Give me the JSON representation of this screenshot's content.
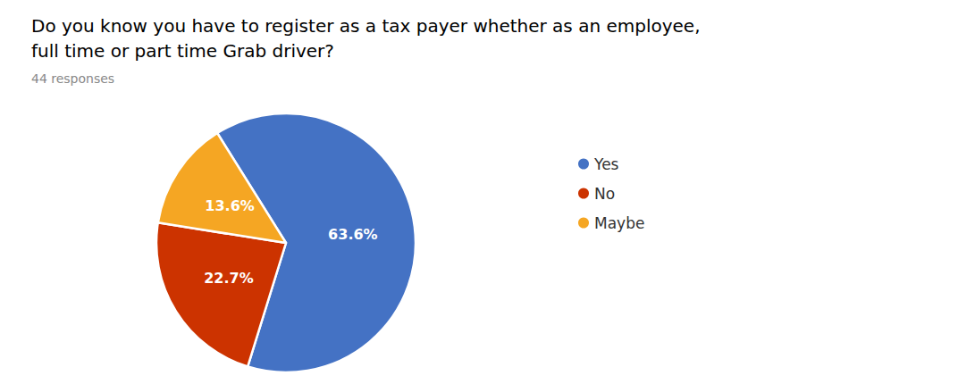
{
  "chart_data": {
    "type": "pie",
    "title": "Do you know you have to register as a tax payer whether as an employee,\nfull time or part time Grab driver?",
    "subtitle": "44 responses",
    "categories": [
      "Yes",
      "No",
      "Maybe"
    ],
    "values": [
      63.6,
      22.7,
      13.6
    ],
    "value_labels": [
      "63.6%",
      "22.7%",
      "13.6%"
    ],
    "colors": [
      "#4472C4",
      "#CC3300",
      "#F5A623"
    ],
    "data_labels": true,
    "legend": "right"
  }
}
